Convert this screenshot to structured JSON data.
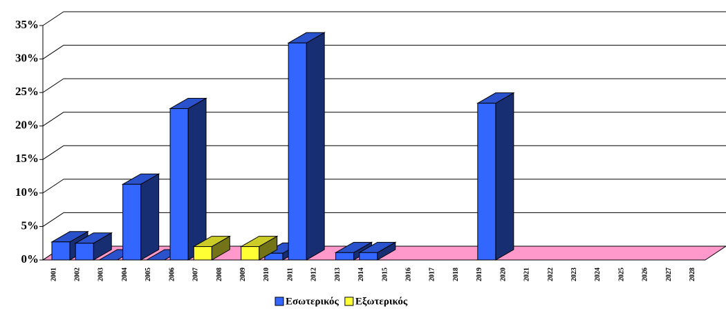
{
  "chart_data": {
    "type": "bar3d",
    "categories": [
      "2001",
      "2002",
      "2003",
      "2004",
      "2005",
      "2006",
      "2007",
      "2008",
      "2009",
      "2010",
      "2011",
      "2012",
      "2013",
      "2014",
      "2015",
      "2016",
      "2017",
      "2018",
      "2019",
      "2020",
      "2021",
      "2022",
      "2023",
      "2024",
      "2025",
      "2026",
      "2027",
      "2028"
    ],
    "series": [
      {
        "name": "Εσωτερικός",
        "color": "#3366ff",
        "values": [
          2.7,
          2.5,
          0,
          11.3,
          0,
          22.6,
          null,
          null,
          null,
          1.0,
          32.4,
          null,
          1.1,
          1.1,
          null,
          null,
          null,
          null,
          23.4,
          null,
          null,
          null,
          null,
          null,
          null,
          null,
          null,
          null
        ]
      },
      {
        "name": "Εξωτερικός",
        "color": "#ffff33",
        "values": [
          null,
          null,
          null,
          null,
          null,
          null,
          2,
          null,
          2,
          null,
          null,
          null,
          null,
          null,
          null,
          null,
          null,
          null,
          null,
          null,
          null,
          null,
          null,
          null,
          null,
          null,
          null,
          null
        ]
      }
    ],
    "ylim": [
      0,
      35
    ],
    "yticks": [
      {
        "value": 0,
        "label": "0%"
      },
      {
        "value": 5,
        "label": "5%"
      },
      {
        "value": 10,
        "label": "10%"
      },
      {
        "value": 15,
        "label": "15%"
      },
      {
        "value": 20,
        "label": "20%"
      },
      {
        "value": 25,
        "label": "25%"
      },
      {
        "value": 30,
        "label": "30%"
      },
      {
        "value": 35,
        "label": "35%"
      }
    ],
    "grid": true,
    "floor_color": "#ff99cc",
    "legend": "bottom"
  }
}
